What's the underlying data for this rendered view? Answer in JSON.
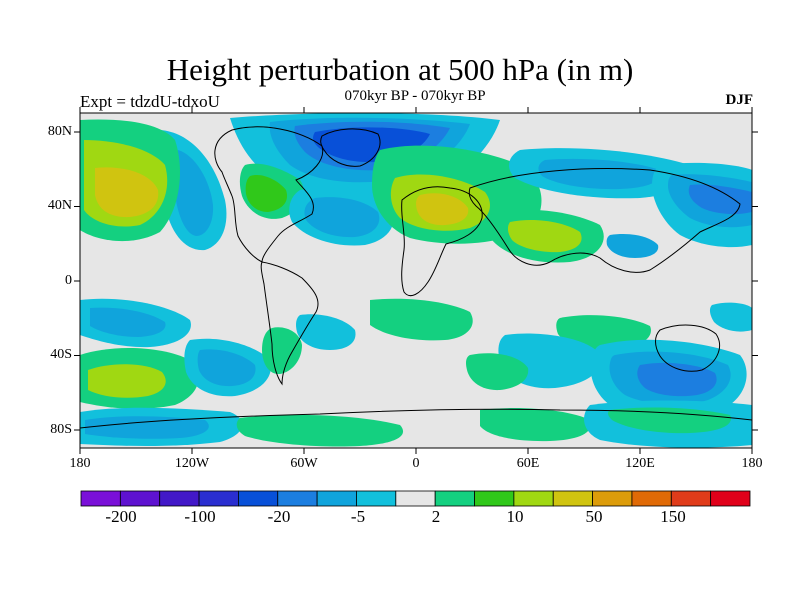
{
  "title": "Height perturbation at 500 hPa (in m)",
  "subtitle": "070kyr BP - 070kyr BP",
  "left_label": "Expt = tdzdU-tdxoU",
  "right_label": "DJF",
  "lat_labels": [
    "80N",
    "40N",
    "0",
    "40S",
    "80S"
  ],
  "lon_labels": [
    "180",
    "120W",
    "60W",
    "0",
    "60E",
    "120E",
    "180"
  ],
  "colorbar": {
    "colors": [
      "#7a10d8",
      "#5e12d0",
      "#4218c8",
      "#2a2ed0",
      "#0850d8",
      "#1c7ee0",
      "#10a4dc",
      "#12c0dc",
      "#e6e6e6",
      "#14d080",
      "#30c81a",
      "#a0d812",
      "#d0c410",
      "#dc9c0a",
      "#e06a06",
      "#e03c1a",
      "#e0001a"
    ],
    "labels": [
      "-200",
      "-100",
      "-20",
      "-5",
      "2",
      "10",
      "50",
      "150"
    ]
  },
  "field_colors": {
    "background": "#e6e6e6",
    "c_n1": "#12c0dc",
    "c_n2": "#10a4dc",
    "c_n3": "#1c7ee0",
    "c_n4": "#0850d8",
    "c_p1": "#14d080",
    "c_p2": "#30c81a",
    "c_p3": "#a0d812",
    "c_p4": "#d0c410",
    "coast": "#000000"
  }
}
